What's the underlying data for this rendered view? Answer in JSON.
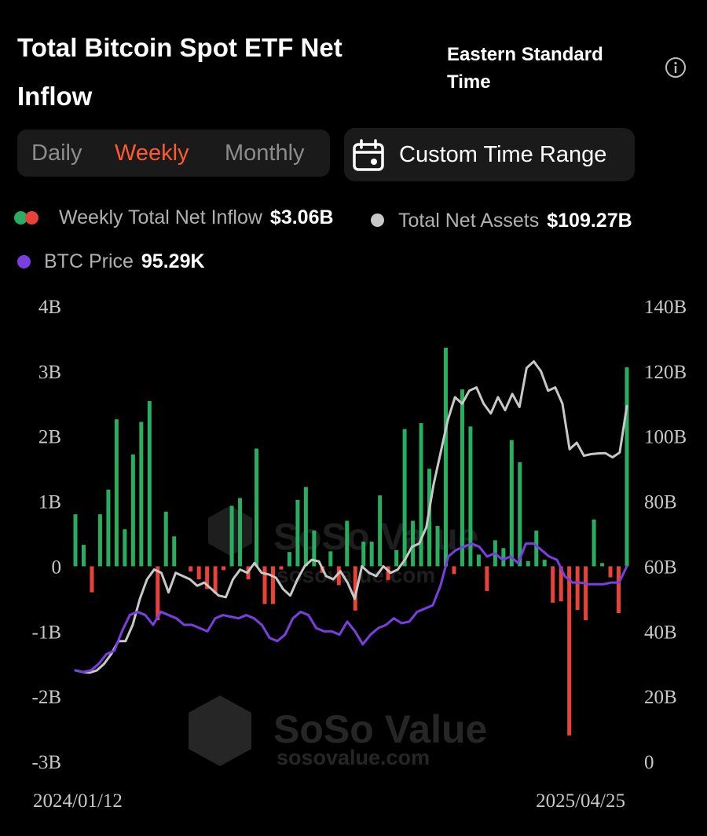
{
  "header": {
    "title": "Total Bitcoin Spot ETF Net Inflow",
    "timezone": "Eastern Standard Time",
    "info_icon": "info-circle-icon"
  },
  "period_tabs": [
    {
      "label": "Daily",
      "active": false
    },
    {
      "label": "Weekly",
      "active": true
    },
    {
      "label": "Monthly",
      "active": false
    }
  ],
  "custom_range": {
    "label": "Custom Time Range",
    "icon": "calendar-icon"
  },
  "legend": {
    "inflow": {
      "label": "Weekly Total Net Inflow",
      "value": "$3.06B",
      "colors": [
        "#27ae60",
        "#e8423a"
      ]
    },
    "assets": {
      "label": "Total Net Assets",
      "value": "$109.27B",
      "color": "#c8c8c8"
    },
    "price": {
      "label": "BTC Price",
      "value": "95.29K",
      "color": "#7b3fe0"
    }
  },
  "watermark": {
    "brand": "SoSo Value",
    "url": "sosovalue.com"
  },
  "colors": {
    "positive": "#27ae60",
    "negative": "#e8423a",
    "assets_line": "#c8c8c8",
    "price_line": "#7b3fe0",
    "accent": "#ff5a2d"
  },
  "chart_data": {
    "type": "bar",
    "title": "Total Bitcoin Spot ETF Net Inflow",
    "x_start_label": "2024/01/12",
    "x_end_label": "2025/04/25",
    "left_axis": {
      "ticks": [
        "4B",
        "3B",
        "2B",
        "1B",
        "0",
        "-1B",
        "-2B",
        "-3B"
      ],
      "range": [
        -3,
        4
      ],
      "unit": "B"
    },
    "right_axis": {
      "ticks": [
        "140B",
        "120B",
        "100B",
        "80B",
        "60B",
        "40B",
        "20B",
        "0"
      ],
      "range": [
        0,
        140
      ],
      "unit": "B"
    },
    "series": [
      {
        "name": "Weekly Total Net Inflow",
        "type": "bar",
        "axis": "left",
        "values": [
          0.8,
          0.33,
          -0.4,
          0.8,
          1.18,
          2.26,
          0.57,
          1.72,
          2.22,
          2.54,
          -0.83,
          0.84,
          0.46,
          0,
          -0.08,
          -0.2,
          -0.35,
          -0.42,
          -0.06,
          0.93,
          1.05,
          -0.2,
          1.81,
          -0.58,
          -0.58,
          -0.05,
          0.22,
          1.02,
          1.22,
          0.55,
          -0.1,
          0.23,
          -0.29,
          0.7,
          -0.68,
          0.38,
          0.38,
          1.09,
          -0.21,
          0.25,
          2.11,
          0.7,
          2.2,
          1.5,
          0.62,
          3.36,
          -0.12,
          2.72,
          2.15,
          0.18,
          -0.38,
          0.4,
          0.28,
          1.94,
          1.6,
          0.08,
          0.55,
          0.1,
          -0.56,
          -0.54,
          -2.6,
          -0.67,
          -0.83,
          0.72,
          0.05,
          -0.17,
          -0.72,
          3.06
        ],
        "colors": {
          "positive": "#27ae60",
          "negative": "#e8423a"
        }
      },
      {
        "name": "Total Net Assets",
        "type": "line",
        "axis": "right",
        "values": [
          28,
          27.5,
          27.3,
          28,
          30,
          33,
          37,
          37,
          42,
          50,
          56,
          59,
          58,
          52,
          58,
          57,
          56,
          54,
          55,
          53,
          51,
          50.5,
          56,
          59,
          58,
          61,
          58,
          57.5,
          56.5,
          53,
          51,
          56,
          60,
          62,
          61.5,
          57,
          56,
          58.5,
          55,
          50,
          60,
          58,
          57,
          60,
          58,
          59,
          62,
          66,
          67,
          72,
          85,
          95,
          105,
          112,
          110,
          114,
          115,
          110,
          107,
          112,
          108,
          113,
          109,
          121,
          123,
          120,
          114,
          115,
          110,
          96,
          98,
          94,
          94.5,
          94.7,
          94.8,
          93.5,
          95,
          109.27
        ]
      },
      {
        "name": "BTC Price",
        "type": "line",
        "axis": "right",
        "values": [
          28,
          27.5,
          28,
          30,
          33,
          34,
          40,
          45,
          46,
          45,
          42,
          46,
          45,
          44,
          42,
          42,
          41,
          40,
          44,
          45,
          44.5,
          44,
          45,
          44,
          42,
          38,
          37,
          39,
          44,
          46,
          45,
          41,
          40,
          40,
          39,
          43,
          40,
          36,
          39,
          41,
          42,
          44,
          42.5,
          43,
          46,
          47,
          48,
          54,
          63,
          65,
          66,
          67,
          66,
          63,
          64,
          62,
          63,
          61,
          67,
          67,
          65,
          63,
          62,
          57,
          55,
          55,
          54.5,
          54.5,
          54.5,
          55,
          55,
          60
        ]
      }
    ]
  }
}
